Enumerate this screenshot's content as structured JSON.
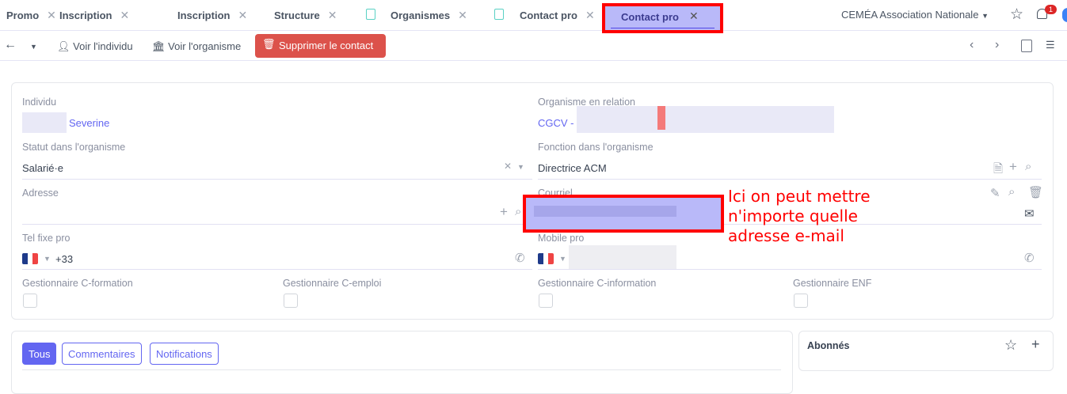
{
  "tabs": [
    {
      "label": "Promo"
    },
    {
      "label": "Inscription"
    },
    {
      "label": "Inscription"
    },
    {
      "label": "Structure"
    },
    {
      "label": "Organismes",
      "icon": "bookmark-icon"
    },
    {
      "label": "Contact pro",
      "icon": "bookmark-icon"
    },
    {
      "label": "Contact pro",
      "active": true
    }
  ],
  "header": {
    "org_selector": "CEMÉA Association Nationale",
    "notification_count": "1"
  },
  "toolbar": {
    "view_person": "Voir l'individu",
    "view_org": "Voir l'organisme",
    "delete": "Supprimer le contact"
  },
  "form": {
    "individu": {
      "label": "Individu",
      "value": "Severine"
    },
    "organisme": {
      "label": "Organisme en relation",
      "value": "CGCV -"
    },
    "statut": {
      "label": "Statut dans l'organisme",
      "value": "Salarié·e"
    },
    "fonction": {
      "label": "Fonction dans l'organisme",
      "value": "Directrice ACM"
    },
    "adresse": {
      "label": "Adresse",
      "value": ""
    },
    "courriel": {
      "label": "Courriel",
      "value": ""
    },
    "tel_fixe": {
      "label": "Tel fixe pro",
      "value": "+33"
    },
    "mobile": {
      "label": "Mobile pro",
      "value": ""
    },
    "checkboxes": [
      {
        "label": "Gestionnaire C-formation",
        "checked": false
      },
      {
        "label": "Gestionnaire C-emploi",
        "checked": false
      },
      {
        "label": "Gestionnaire C-information",
        "checked": false
      },
      {
        "label": "Gestionnaire ENF",
        "checked": false
      }
    ]
  },
  "annotation": {
    "line1": "Ici on peut mettre",
    "line2": "n'importe quelle",
    "line3": "adresse e-mail"
  },
  "chatter": {
    "tabs": [
      "Tous",
      "Commentaires",
      "Notifications"
    ]
  },
  "followers": {
    "title": "Abonnés"
  },
  "colors": {
    "accent": "#6366f1",
    "danger": "#dc524b",
    "annotation": "#ff0000"
  }
}
